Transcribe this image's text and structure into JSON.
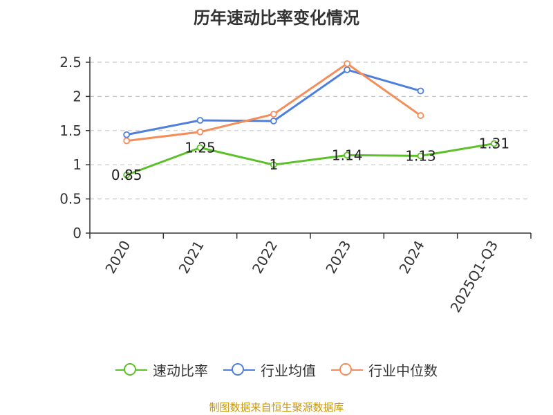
{
  "chart_data": {
    "type": "line",
    "title": "历年速动比率变化情况",
    "categories": [
      "2020",
      "2021",
      "2022",
      "2023",
      "2024",
      "2025Q1-Q3"
    ],
    "y_ticks": [
      "0",
      "0.5",
      "1",
      "1.5",
      "2",
      "2.5"
    ],
    "ylim": [
      0,
      2.5
    ],
    "series": [
      {
        "name": "速动比率",
        "color": "#5cc02a",
        "values": [
          0.85,
          1.25,
          1,
          1.14,
          1.13,
          1.31
        ],
        "labels": [
          "0.85",
          "1.25",
          "1",
          "1.14",
          "1.13",
          "1.31"
        ]
      },
      {
        "name": "行业均值",
        "color": "#4f7fdc",
        "values": [
          1.44,
          1.65,
          1.64,
          2.39,
          2.08,
          null
        ]
      },
      {
        "name": "行业中位数",
        "color": "#f58d5a",
        "values": [
          1.35,
          1.48,
          1.74,
          2.48,
          1.72,
          null
        ]
      }
    ],
    "legend_position": "bottom",
    "grid": true
  },
  "footer": {
    "source": "制图数据来自恒生聚源数据库"
  }
}
